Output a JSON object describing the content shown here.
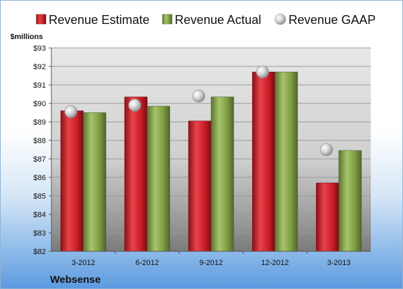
{
  "chart_data": {
    "type": "bar",
    "title": "",
    "ylabel": "$millions",
    "xlabel": "",
    "caption": "Websense",
    "ylim": [
      82,
      93
    ],
    "yticks": [
      82,
      83,
      84,
      85,
      86,
      87,
      88,
      89,
      90,
      91,
      92,
      93
    ],
    "ytick_labels": [
      "$82",
      "$83",
      "$84",
      "$85",
      "$86",
      "$87",
      "$88",
      "$89",
      "$90",
      "$91",
      "$92",
      "$93"
    ],
    "grid": true,
    "legend_position": "top",
    "categories": [
      "3-2012",
      "6-2012",
      "9-2012",
      "12-2012",
      "3-2013"
    ],
    "series": [
      {
        "name": "Revenue Estimate",
        "kind": "bar",
        "color": "#cc1f28",
        "values": [
          89.6,
          90.35,
          89.05,
          91.7,
          85.7
        ]
      },
      {
        "name": "Revenue Actual",
        "kind": "bar",
        "color": "#7f9f45",
        "values": [
          89.5,
          89.85,
          90.35,
          91.7,
          87.45
        ]
      },
      {
        "name": "Revenue GAAP",
        "kind": "marker",
        "color": "#c8c8c8",
        "values": [
          89.55,
          89.9,
          90.4,
          91.7,
          87.5
        ]
      }
    ]
  }
}
